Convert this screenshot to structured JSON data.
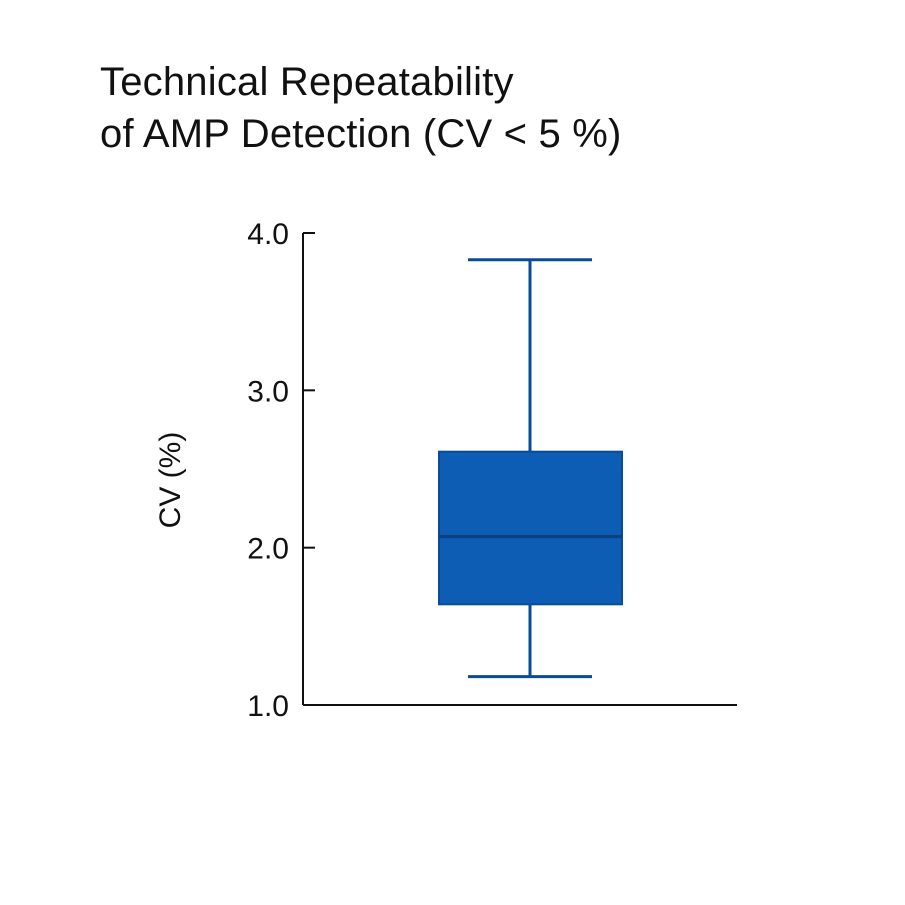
{
  "title_lines": [
    "Technical Repeatability",
    "of AMP Detection (CV < 5 %)"
  ],
  "chart_data": {
    "type": "box",
    "title": "Technical Repeatability of AMP Detection (CV < 5 %)",
    "xlabel": "",
    "ylabel": "CV (%)",
    "ylim": [
      1.0,
      4.0
    ],
    "yticks": [
      "1.0",
      "2.0",
      "3.0",
      "4.0"
    ],
    "grid": false,
    "box": {
      "whisker_low": 1.18,
      "q1": 1.64,
      "median": 2.07,
      "q3": 2.61,
      "whisker_high": 3.83
    },
    "colors": {
      "box_fill": "#0D5DB5",
      "box_line": "#0A4B98",
      "axis": "#111111"
    }
  }
}
